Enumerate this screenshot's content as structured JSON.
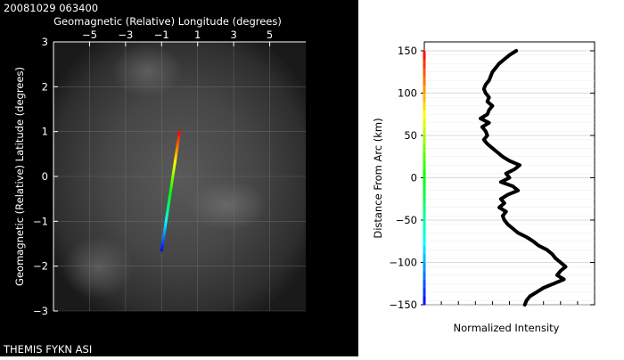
{
  "header": {
    "timestamp": "20081029 063400"
  },
  "footer": {
    "station": "THEMIS FYKN ASI"
  },
  "chart_data": [
    {
      "type": "line",
      "panel": "all-sky image overlay",
      "title": "Geomagnetic (Relative) Longitude (degrees)",
      "xlabel": "Geomagnetic (Relative) Longitude (degrees)",
      "ylabel": "Geomagnetic (Relative) Latitude (degrees)",
      "xlim": [
        -7,
        7
      ],
      "ylim": [
        -3,
        3
      ],
      "x_ticks": [
        -5,
        -3,
        -1,
        1,
        3,
        5
      ],
      "y_ticks": [
        -3,
        -2,
        -1,
        0,
        1,
        2,
        3
      ],
      "x_tick_labels": [
        "−5",
        "−3",
        "−1",
        "1",
        "3",
        "5"
      ],
      "y_tick_labels": [
        "−3",
        "−2",
        "−1",
        "0",
        "1",
        "2",
        "3"
      ],
      "grid": true,
      "series": [
        {
          "x": [
            -1.0,
            0.0
          ],
          "y": [
            -1.65,
            1.0
          ]
        }
      ]
    },
    {
      "type": "line",
      "panel": "intensity profile",
      "xlabel": "Normalized Intensity",
      "ylabel": "Distance From Arc (km)",
      "ylim": [
        -150,
        150
      ],
      "y_ticks": [
        -150,
        -100,
        -50,
        0,
        50,
        100,
        150
      ],
      "y_tick_labels": [
        "−150",
        "−100",
        "−50",
        "0",
        "50",
        "100",
        "150"
      ],
      "grid": true,
      "series": [
        {
          "y": [
            150,
            145,
            140,
            135,
            130,
            125,
            120,
            115,
            110,
            105,
            100,
            95,
            90,
            85,
            80,
            75,
            70,
            65,
            60,
            55,
            50,
            45,
            40,
            35,
            30,
            25,
            20,
            15,
            10,
            5,
            0,
            -5,
            -10,
            -15,
            -20,
            -25,
            -30,
            -35,
            -40,
            -45,
            -50,
            -55,
            -60,
            -65,
            -70,
            -75,
            -80,
            -85,
            -90,
            -95,
            -100,
            -105,
            -110,
            -115,
            -120,
            -125,
            -130,
            -135,
            -140,
            -145,
            -150
          ],
          "intensity": [
            0.54,
            0.5,
            0.47,
            0.44,
            0.42,
            0.4,
            0.39,
            0.38,
            0.36,
            0.35,
            0.36,
            0.38,
            0.37,
            0.4,
            0.38,
            0.37,
            0.33,
            0.38,
            0.34,
            0.36,
            0.37,
            0.35,
            0.37,
            0.4,
            0.43,
            0.46,
            0.5,
            0.56,
            0.53,
            0.48,
            0.5,
            0.45,
            0.52,
            0.55,
            0.49,
            0.45,
            0.47,
            0.44,
            0.48,
            0.46,
            0.47,
            0.49,
            0.52,
            0.55,
            0.6,
            0.64,
            0.67,
            0.72,
            0.75,
            0.77,
            0.8,
            0.83,
            0.8,
            0.78,
            0.82,
            0.76,
            0.7,
            0.66,
            0.62,
            0.6,
            0.59
          ]
        }
      ]
    }
  ]
}
